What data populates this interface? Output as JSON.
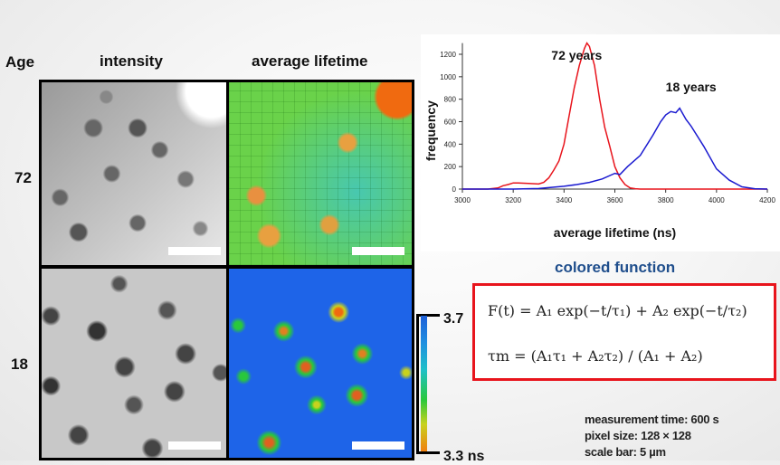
{
  "headers": {
    "age": "Age",
    "intensity": "intensity",
    "average_lifetime": "average lifetime"
  },
  "rows": [
    {
      "age": "72"
    },
    {
      "age": "18"
    }
  ],
  "colorbar": {
    "max_label": "3.7",
    "min_label": "3.3 ns",
    "colors": [
      "#1e5fd8",
      "#1fc0c8",
      "#29c83c",
      "#c8d21e",
      "#f08010"
    ]
  },
  "formula": {
    "title": "colored function",
    "line1": "F(t) = A₁ exp(−t/τ₁) + A₂ exp(−t/τ₂)",
    "line2": "τm = (A₁τ₁ + A₂τ₂) / (A₁ + A₂)",
    "border_color": "#e8141c",
    "title_color": "#1f4e8c"
  },
  "info": {
    "measurement_time": "measurement time: 600 s",
    "pixel_size": "pixel size: 128 × 128",
    "scale_bar": "scale bar: 5 µm"
  },
  "chart_data": {
    "type": "line",
    "title": "",
    "xlabel": "average lifetime  (ns)",
    "ylabel": "frequency",
    "xlim": [
      3000,
      4200
    ],
    "ylim": [
      0,
      1300
    ],
    "xticks": [
      3000,
      3200,
      3400,
      3600,
      3800,
      4000,
      4200
    ],
    "yticks": [
      0,
      200,
      400,
      600,
      800,
      1000,
      1200
    ],
    "grid": false,
    "annotations": [
      {
        "text": "72 years",
        "x": 3350,
        "y": 1150
      },
      {
        "text": "18 years",
        "x": 3800,
        "y": 870
      }
    ],
    "series": [
      {
        "name": "72 years",
        "color": "#e8141c",
        "x": [
          3000,
          3100,
          3140,
          3160,
          3180,
          3200,
          3220,
          3260,
          3300,
          3320,
          3340,
          3360,
          3380,
          3400,
          3420,
          3440,
          3460,
          3480,
          3490,
          3500,
          3520,
          3540,
          3560,
          3580,
          3600,
          3620,
          3640,
          3660,
          3680,
          3700,
          3800,
          4200
        ],
        "y": [
          0,
          0,
          10,
          30,
          40,
          55,
          55,
          50,
          45,
          60,
          100,
          170,
          250,
          400,
          650,
          900,
          1100,
          1250,
          1300,
          1270,
          1100,
          800,
          550,
          380,
          200,
          100,
          40,
          10,
          3,
          0,
          0,
          0
        ]
      },
      {
        "name": "18 years",
        "color": "#1a1ad0",
        "x": [
          3000,
          3200,
          3300,
          3400,
          3450,
          3500,
          3550,
          3600,
          3620,
          3650,
          3700,
          3750,
          3780,
          3800,
          3820,
          3840,
          3855,
          3880,
          3900,
          3950,
          4000,
          4050,
          4100,
          4150,
          4200
        ],
        "y": [
          0,
          0,
          5,
          25,
          40,
          60,
          90,
          140,
          130,
          200,
          300,
          480,
          600,
          660,
          690,
          680,
          720,
          620,
          560,
          380,
          180,
          80,
          20,
          3,
          0
        ]
      }
    ]
  }
}
